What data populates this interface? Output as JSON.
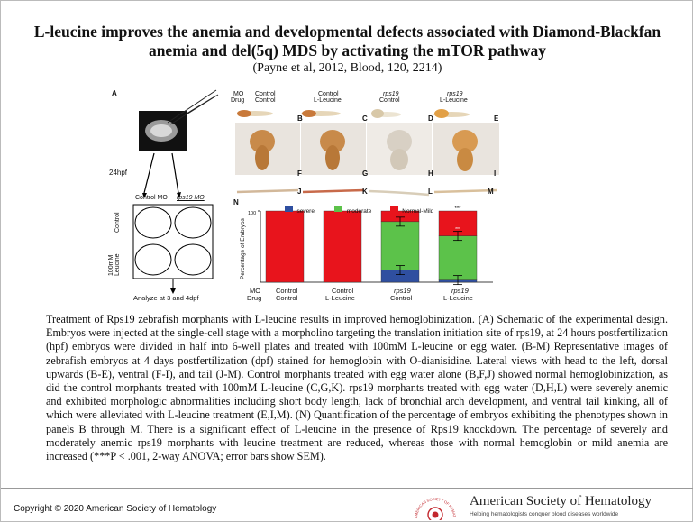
{
  "title": "L-leucine improves the anemia and developmental defects associated with Diamond-Blackfan anemia and del(5q) MDS by activating the mTOR pathway",
  "citation": "(Payne et al, 2012, Blood, 120, 2214)",
  "figure": {
    "panel_a": {
      "letter": "A",
      "hpf": "24hpf",
      "plate_col1": "Control MO",
      "plate_col2": "rps19 MO",
      "row_control": "Control",
      "row_leucine": "100mM\nLeucine",
      "analyze": "Analyze at 3 and 4dpf"
    },
    "grid_header": {
      "mo": "MO",
      "drug": "Drug",
      "cols": [
        {
          "mo": "Control",
          "drug": "Control"
        },
        {
          "mo": "Control",
          "drug": "L-Leucine"
        },
        {
          "mo": "rps19",
          "drug": "Control"
        },
        {
          "mo": "rps19",
          "drug": "L-Leucine"
        }
      ]
    },
    "panel_letters": [
      "B",
      "C",
      "D",
      "E",
      "F",
      "G",
      "H",
      "I",
      "J",
      "K",
      "L",
      "M"
    ],
    "panel_n": "N"
  },
  "chart_data": {
    "type": "bar",
    "stacked": true,
    "ylabel": "Percentage of Embryos",
    "ytick": "100",
    "ylim": [
      0,
      100
    ],
    "categories": [
      "Control/Control",
      "Control/L-Leucine",
      "rps19/Control",
      "rps19/L-Leucine"
    ],
    "xlabels": {
      "mo": "MO",
      "drug": "Drug",
      "cols": [
        {
          "mo": "Control",
          "drug": "Control"
        },
        {
          "mo": "Control",
          "drug": "L-Leucine"
        },
        {
          "mo": "rps19",
          "drug": "Control"
        },
        {
          "mo": "rps19",
          "drug": "L-Leucine"
        }
      ]
    },
    "legend_position": "top",
    "series": [
      {
        "name": "severe",
        "color": "#2f4fa0",
        "values": [
          0,
          0,
          17,
          3
        ]
      },
      {
        "name": "moderate",
        "color": "#5cc24a",
        "values": [
          0,
          0,
          68,
          62
        ]
      },
      {
        "name": "Normal-Mild",
        "color": "#e8141c",
        "values": [
          100,
          100,
          15,
          35
        ]
      }
    ],
    "annotations": [
      "***",
      "***"
    ]
  },
  "caption": "Treatment of Rps19 zebrafish morphants with L-leucine results in improved hemoglobinization. (A) Schematic of the experimental design. Embryos were injected at the single-cell stage with a morpholino targeting the translation initiation site of rps19, at 24 hours postfertilization (hpf) embryos were divided in half into 6-well plates and treated with 100mM L-leucine or egg water. (B-M) Representative images of zebrafish embryos at 4 days postfertilization (dpf) stained for hemoglobin with O-dianisidine. Lateral views with head to the left, dorsal upwards (B-E), ventral (F-I), and tail (J-M). Control morphants treated with egg water alone (B,F,J) showed normal hemoglobinization, as did the control morphants treated with 100mM L-leucine (C,G,K). rps19 morphants treated with egg water (D,H,L) were severely anemic and exhibited morphologic abnormalities including short body length, lack of bronchial arch development, and ventral tail kinking, all of which were alleviated with L-leucine treatment (E,I,M). (N) Quantification of the percentage of embryos exhibiting the phenotypes shown in panels B through M. There is a significant effect of L-leucine in the presence of Rps19 knockdown. The percentage of severely and moderately anemic rps19 morphants with leucine treatment are reduced, whereas those with normal hemoglobin or mild anemia are increased (***P < .001, 2-way ANOVA; error bars show SEM).",
  "footer": {
    "copyright": "Copyright © 2020 American Society of Hematology",
    "ash_name": "American Society of Hematology",
    "ash_tagline": "Helping hematologists conquer blood diseases worldwide",
    "logo_text": "AMERICAN SOCIETY OF HEMATOLOGY"
  }
}
